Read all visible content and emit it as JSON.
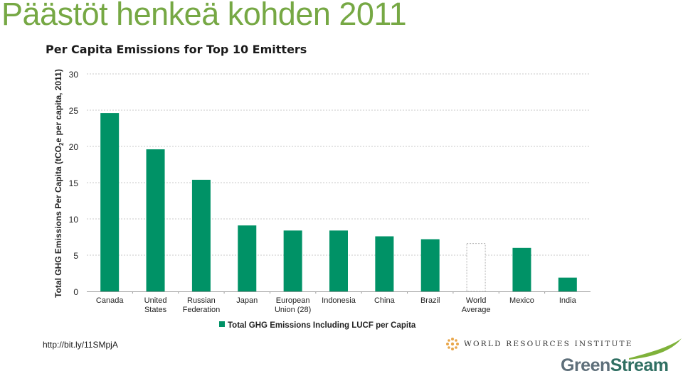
{
  "slide": {
    "title": "Päästöt henkeä kohden 2011",
    "source": "http://bit.ly/11SMpjA"
  },
  "logos": {
    "wri": "WORLD RESOURCES INSTITUTE",
    "greenstream_part1": "Green",
    "greenstream_part2": "Stream",
    "greenstream_colors": [
      "#5e6f7a",
      "#2f6f62"
    ],
    "swoosh_color": "#7fb23a",
    "wri_icon": "wri-emblem-icon"
  },
  "colors": {
    "bar": "#009266",
    "grid": "#c8c8c8",
    "title_green": "#76a844"
  },
  "chart_data": {
    "type": "bar",
    "title": "Per Capita Emissions for Top 10 Emitters",
    "ylabel_parts": [
      "Total GHG Emissions Per Capita (tCO",
      "2",
      "e per capita, 2011)"
    ],
    "categories": [
      [
        "Canada"
      ],
      [
        "United",
        "States"
      ],
      [
        "Russian",
        "Federation"
      ],
      [
        "Japan"
      ],
      [
        "European",
        "Union (28)"
      ],
      [
        "Indonesia"
      ],
      [
        "China"
      ],
      [
        "Brazil"
      ],
      [
        "World",
        "Average"
      ],
      [
        "Mexico"
      ],
      [
        "India"
      ]
    ],
    "values": [
      24.6,
      19.6,
      15.4,
      9.1,
      8.4,
      8.4,
      7.6,
      7.2,
      6.6,
      6.0,
      1.9
    ],
    "styles": [
      "solid",
      "solid",
      "solid",
      "solid",
      "solid",
      "solid",
      "solid",
      "solid",
      "dashed",
      "solid",
      "solid"
    ],
    "ylim": [
      0,
      30
    ],
    "yticks": [
      "0",
      "5",
      "10",
      "15",
      "20",
      "25",
      "30"
    ],
    "grid": true,
    "legend": {
      "label": "Total GHG Emissions Including LUCF per Capita",
      "placement": "bottom"
    }
  }
}
